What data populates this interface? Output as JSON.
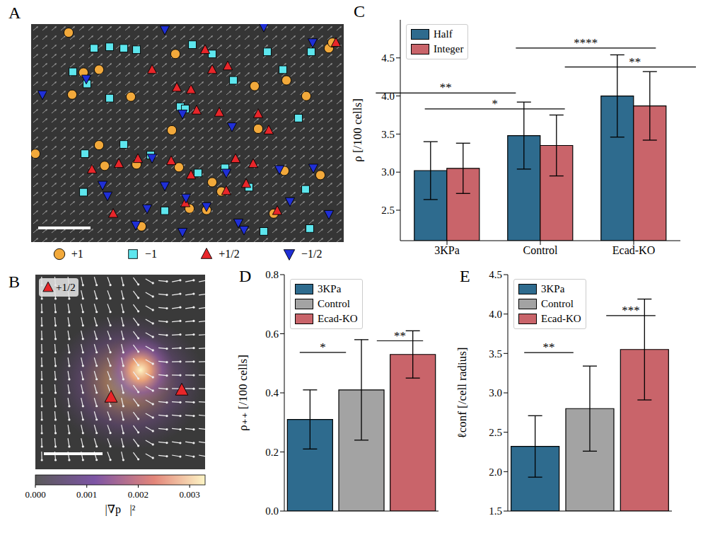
{
  "chart_data": [
    {
      "panel": "A",
      "type": "scatter",
      "tick_labels": false,
      "xlim": [
        44,
        486
      ],
      "ylim": [
        36,
        342
      ],
      "legend": "bottom",
      "series": [
        {
          "name": "+1",
          "marker": "circle",
          "color": "#f2a93b",
          "points": [
            [
              97,
              48
            ],
            [
              248,
              78
            ],
            [
              140,
              100
            ],
            [
              118,
              104
            ],
            [
              102,
              135
            ],
            [
              185,
              138
            ],
            [
              360,
              123
            ],
            [
              465,
              70
            ],
            [
              470,
              62
            ],
            [
              405,
              115
            ],
            [
              433,
              137
            ],
            [
              243,
              185
            ],
            [
              365,
              183
            ],
            [
              140,
              206
            ],
            [
              50,
              218
            ],
            [
              193,
              233
            ],
            [
              148,
              235
            ],
            [
              253,
              237
            ],
            [
              300,
              258
            ],
            [
              313,
              271
            ],
            [
              402,
              242
            ],
            [
              453,
              248
            ],
            [
              268,
              295
            ],
            [
              292,
              297
            ],
            [
              387,
              302
            ],
            [
              200,
              320
            ]
          ]
        },
        {
          "name": "−1",
          "marker": "square",
          "color": "#5de6ee",
          "points": [
            [
              133,
              70
            ],
            [
              155,
              68
            ],
            [
              175,
              70
            ],
            [
              193,
              72
            ],
            [
              272,
              65
            ],
            [
              300,
              78
            ],
            [
              378,
              75
            ],
            [
              440,
              75
            ],
            [
              103,
              103
            ],
            [
              123,
              120
            ],
            [
              155,
              140
            ],
            [
              330,
              115
            ],
            [
              400,
              100
            ],
            [
              255,
              152
            ],
            [
              262,
              155
            ],
            [
              422,
              168
            ],
            [
              120,
              218
            ],
            [
              175,
              205
            ],
            [
              213,
              220
            ],
            [
              280,
              245
            ],
            [
              318,
              238
            ],
            [
              432,
              268
            ],
            [
              118,
              272
            ],
            [
              233,
              298
            ],
            [
              352,
              265
            ],
            [
              373,
              327
            ],
            [
              438,
              323
            ]
          ]
        },
        {
          "name": "+1/2",
          "marker": "triangle",
          "color": "#e8262a",
          "points": [
            [
              475,
              62
            ],
            [
              290,
              72
            ],
            [
              215,
              100
            ],
            [
              300,
              100
            ],
            [
              322,
              95
            ],
            [
              250,
              125
            ],
            [
              270,
              128
            ],
            [
              278,
              157
            ],
            [
              310,
              160
            ],
            [
              365,
              162
            ],
            [
              380,
              185
            ],
            [
              130,
              240
            ],
            [
              168,
              232
            ],
            [
              195,
              225
            ],
            [
              242,
              228
            ],
            [
              333,
              225
            ],
            [
              358,
              232
            ],
            [
              270,
              248
            ],
            [
              160,
              302
            ],
            [
              262,
              287
            ],
            [
              320,
              270
            ],
            [
              348,
              260
            ],
            [
              392,
              298
            ]
          ]
        },
        {
          "name": "−1/2",
          "marker": "triangle-down",
          "color": "#1f2fd6",
          "points": [
            [
              233,
              44
            ],
            [
              442,
              62
            ],
            [
              60,
              135
            ],
            [
              122,
              113
            ],
            [
              258,
              162
            ],
            [
              215,
              224
            ],
            [
              328,
              180
            ],
            [
              320,
              245
            ],
            [
              395,
              240
            ],
            [
              152,
              277
            ],
            [
              145,
              262
            ],
            [
              233,
              263
            ],
            [
              263,
              280
            ],
            [
              292,
              292
            ],
            [
              208,
              295
            ],
            [
              337,
              315
            ],
            [
              345,
              325
            ],
            [
              258,
              328
            ],
            [
              192,
              318
            ],
            [
              410,
              285
            ],
            [
              465,
              303
            ],
            [
              443,
              238
            ],
            [
              373,
              40
            ]
          ]
        }
      ]
    },
    {
      "panel": "B",
      "type": "image",
      "tick_labels": false,
      "xlim": [
        50,
        290
      ],
      "ylim": [
        390,
        665
      ],
      "series": [
        {
          "name": "+1/2",
          "marker": "triangle",
          "color": "#e8262a",
          "points": [
            [
              157,
              563
            ],
            [
              257,
              553
            ]
          ]
        }
      ],
      "colorbar": {
        "range": [
          0,
          0.0033
        ],
        "ticks": [
          {
            "value": 0,
            "label": "0.000"
          },
          {
            "value": 0.001,
            "label": "0.001"
          },
          {
            "value": 0.002,
            "label": "0.002"
          },
          {
            "value": 0.003,
            "label": "0.003"
          }
        ],
        "label": "|∇p⃗|²"
      }
    },
    {
      "panel": "C",
      "type": "bar",
      "categories": [
        "3KPa",
        "Control",
        "Ecad-KO"
      ],
      "ylabel": "ρ [/100 cells]",
      "ylim": [
        2.1,
        5.0
      ],
      "yticks": [
        2.5,
        {
          "value": 3,
          "label": "3.0"
        },
        3.5,
        {
          "value": 4,
          "label": "4.0"
        },
        4.5
      ],
      "legend": "upper left",
      "series": [
        {
          "name": "Half",
          "color": "#2e6b8e",
          "values": [
            3.02,
            3.48,
            4.0
          ],
          "errors": [
            0.38,
            0.44,
            0.54
          ]
        },
        {
          "name": "Integer",
          "color": "#c9646a",
          "values": [
            3.05,
            3.35,
            3.87
          ],
          "errors": [
            0.33,
            0.4,
            0.45
          ]
        }
      ],
      "annotations": [
        {
          "text": "**",
          "from": "3KPa",
          "to": "Control",
          "series": "Half",
          "y": 4.04
        },
        {
          "text": "*",
          "from": "3KPa",
          "to": "Control",
          "series": "Integer",
          "y": 3.83
        },
        {
          "text": "****",
          "from": "Control",
          "to": "Ecad-KO",
          "series": "Half",
          "y": 4.63
        },
        {
          "text": "**",
          "from": "Control",
          "to": "Ecad-KO",
          "series": "Integer",
          "y": 4.38
        }
      ]
    },
    {
      "panel": "D",
      "type": "bar",
      "categories": [
        "3KPa",
        "Control",
        "Ecad-KO"
      ],
      "ylabel": "ρ₊₊ [/100 cells]",
      "tick_labels": "y",
      "ylim": [
        0,
        0.8
      ],
      "yticks": [
        {
          "value": 0,
          "label": "0.0"
        },
        0.2,
        0.4,
        0.6,
        0.8
      ],
      "legend": "upper left",
      "values": [
        0.31,
        0.41,
        0.53
      ],
      "errors": [
        0.1,
        0.17,
        0.08
      ],
      "colors": [
        "#2e6b8e",
        "#a3a3a3",
        "#c9646a"
      ],
      "annotations": [
        {
          "text": "*",
          "from": "3KPa",
          "to": "Control",
          "y": 0.537
        },
        {
          "text": "**",
          "from": "Control",
          "to": "Ecad-KO",
          "y": 0.576
        }
      ]
    },
    {
      "panel": "E",
      "type": "bar",
      "categories": [
        "3KPa",
        "Control",
        "Ecad-KO"
      ],
      "ylabel": "ℓconf [/cell radius]",
      "tick_labels": "y",
      "ylim": [
        1.5,
        4.5
      ],
      "yticks": [
        1.5,
        {
          "value": 2,
          "label": "2.0"
        },
        2.5,
        {
          "value": 3,
          "label": "3.0"
        },
        3.5,
        {
          "value": 4,
          "label": "4.0"
        },
        4.5
      ],
      "legend": "upper left",
      "values": [
        2.32,
        2.8,
        3.55
      ],
      "errors": [
        0.39,
        0.54,
        0.64
      ],
      "colors": [
        "#2e6b8e",
        "#a3a3a3",
        "#c9646a"
      ],
      "annotations": [
        {
          "text": "**",
          "from": "3KPa",
          "to": "Control",
          "y": 3.51
        },
        {
          "text": "***",
          "from": "Control",
          "to": "Ecad-KO",
          "y": 3.98
        }
      ]
    }
  ]
}
